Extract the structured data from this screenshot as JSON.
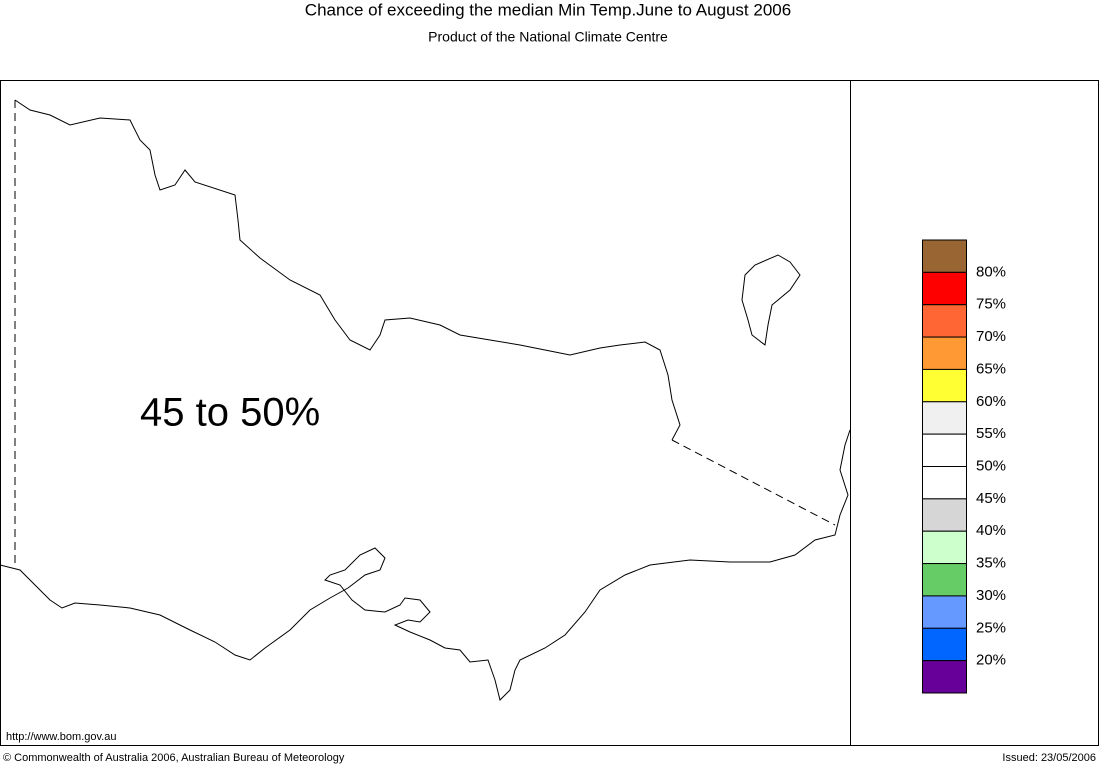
{
  "header": {
    "title": "Chance of exceeding the median Min Temp.June to August 2006",
    "subtitle": "Product of the National Climate Centre"
  },
  "map": {
    "region_label": "45 to 50%"
  },
  "legend": {
    "colors": [
      "#996633",
      "#ff0000",
      "#ff6633",
      "#ff9933",
      "#ffff33",
      "#f0f0f0",
      "#ffffff",
      "#ffffff",
      "#d6d6d6",
      "#ccffcc",
      "#66cc66",
      "#6699ff",
      "#0066ff",
      "#660099"
    ],
    "labels": [
      "80%",
      "75%",
      "70%",
      "65%",
      "60%",
      "55%",
      "50%",
      "45%",
      "40%",
      "35%",
      "30%",
      "25%",
      "20%"
    ]
  },
  "footer": {
    "url": "http://www.bom.gov.au",
    "copyright": "© Commonwealth of Australia 2006, Australian Bureau of Meteorology",
    "issued": "Issued: 23/05/2006"
  }
}
